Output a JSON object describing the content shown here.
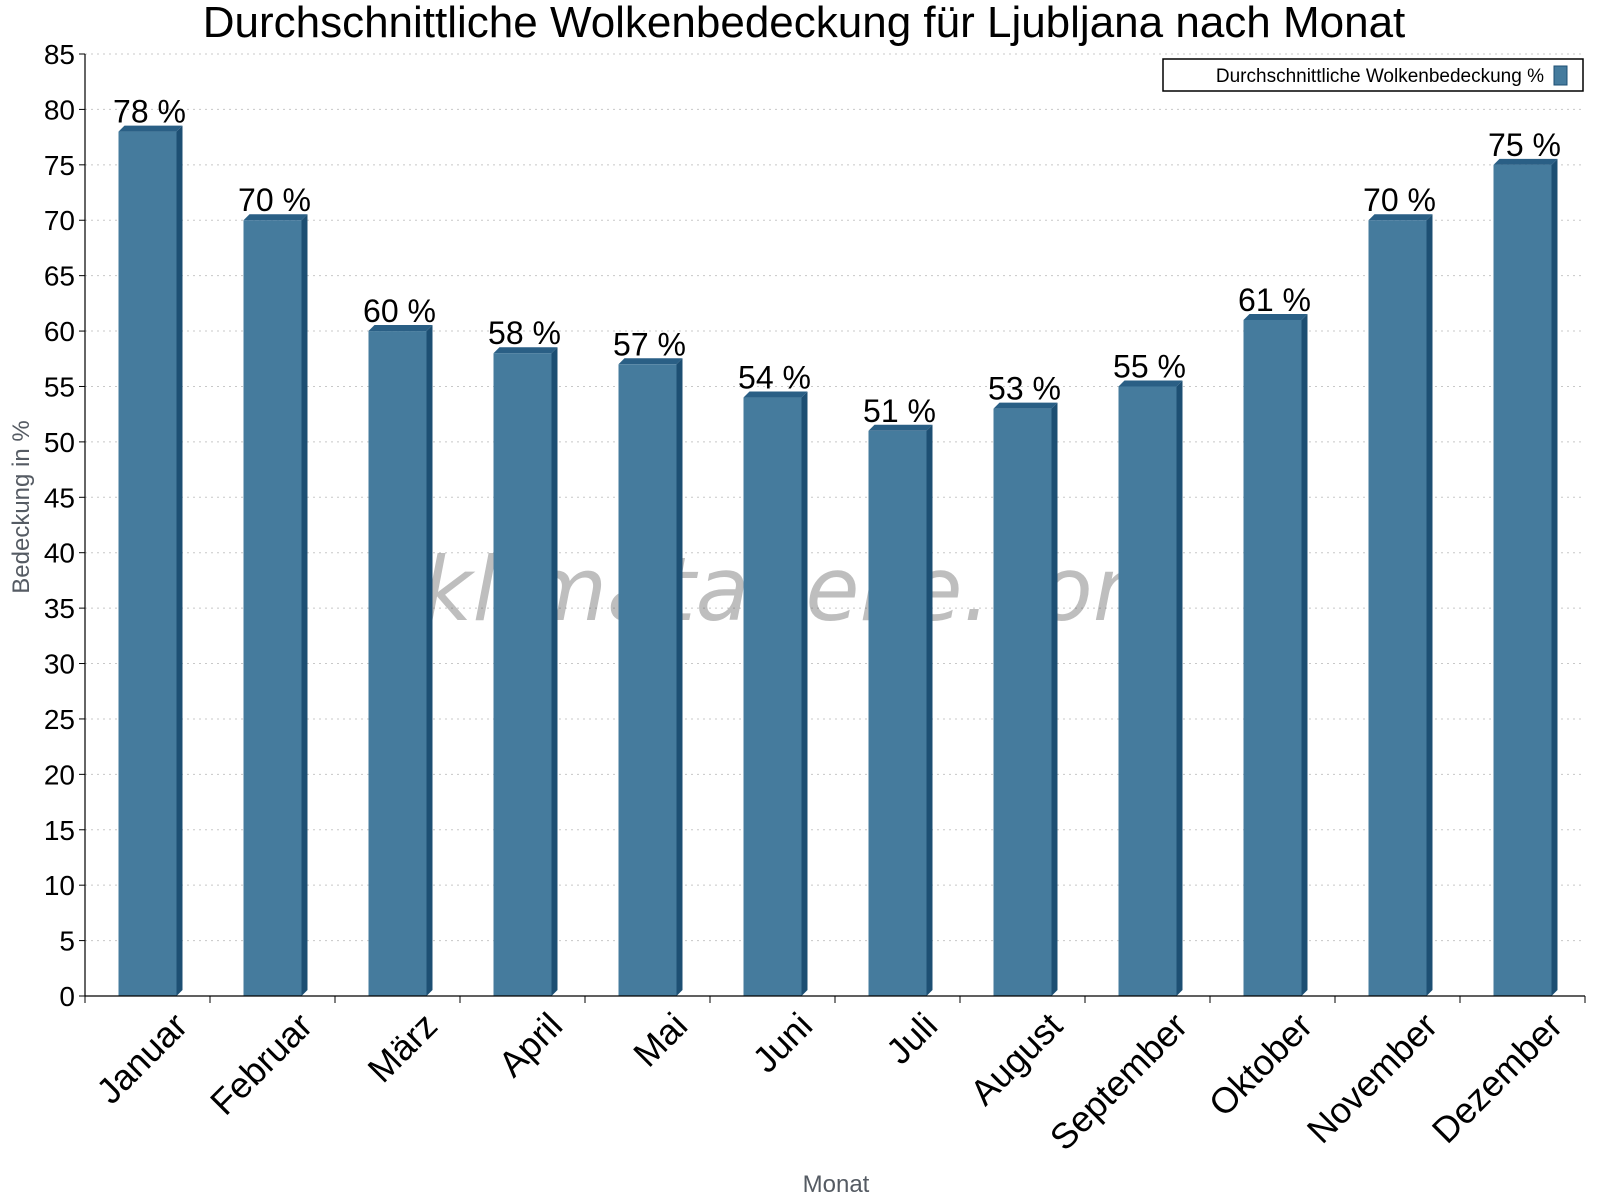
{
  "chart_data": {
    "type": "bar",
    "title": "Durchschnittliche Wolkenbedeckung für Ljubljana nach Monat",
    "xlabel": "Monat",
    "ylabel": "Bedeckung in %",
    "ylim": [
      0,
      85
    ],
    "ytick_step": 5,
    "grid": "horizontal-dotted",
    "legend_position": "top-right",
    "watermark": "klimatabelle.com",
    "value_suffix": " %",
    "categories": [
      "Januar",
      "Februar",
      "März",
      "April",
      "Mai",
      "Juni",
      "Juli",
      "August",
      "September",
      "Oktober",
      "November",
      "Dezember"
    ],
    "series": [
      {
        "name": "Durchschnittliche Wolkenbedeckung %",
        "values": [
          78,
          70,
          60,
          58,
          57,
          54,
          51,
          53,
          55,
          61,
          70,
          75
        ]
      }
    ],
    "colors": {
      "bar_face": "#457b9d",
      "bar_side": "#1d4f73",
      "bar_top": "#2a5f85",
      "grid": "#c8c8c8",
      "axis": "#000000"
    }
  }
}
